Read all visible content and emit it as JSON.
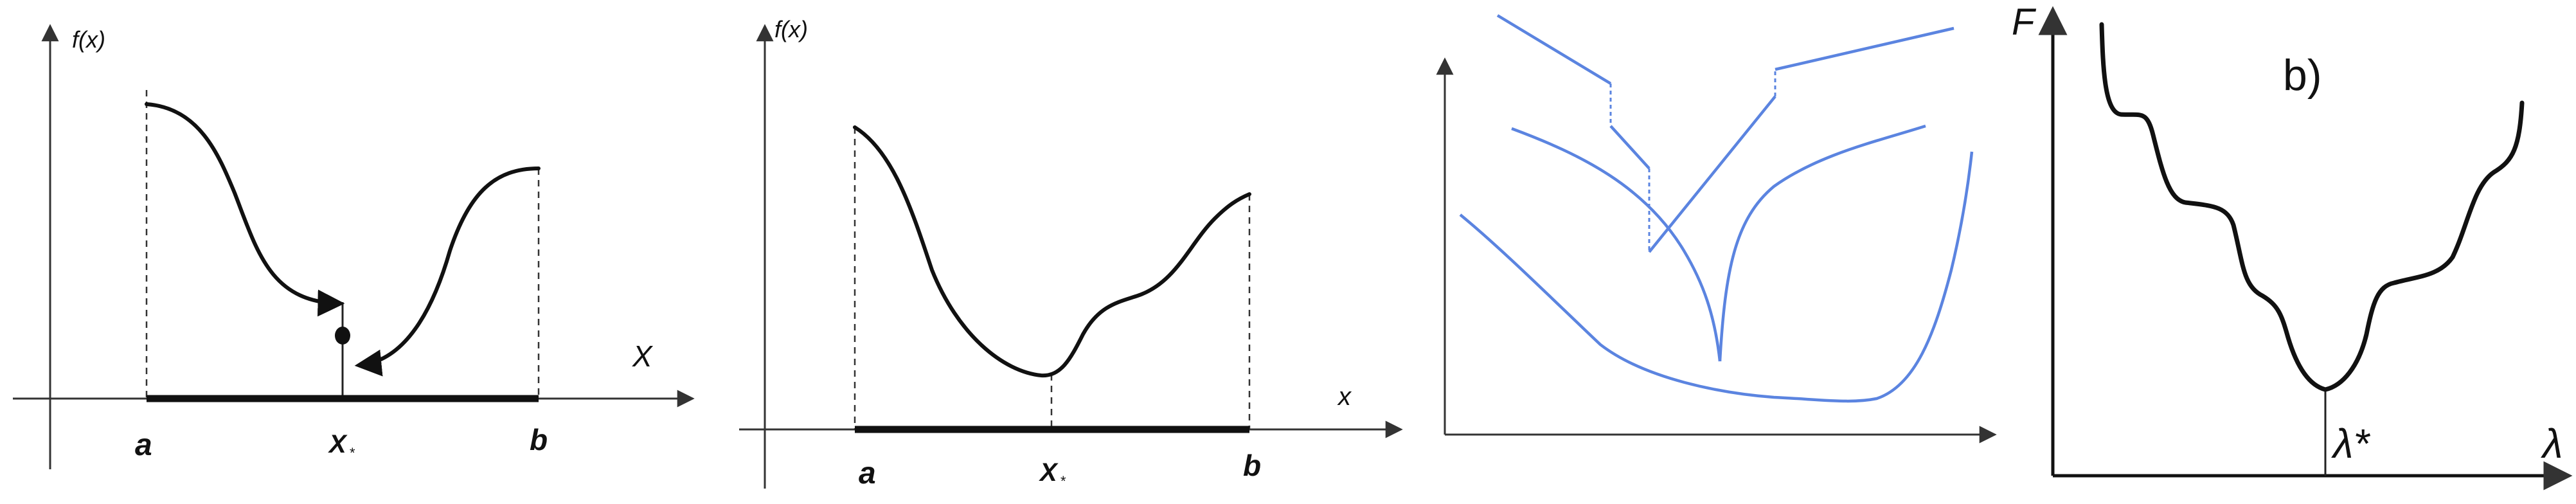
{
  "panel1": {
    "y_label": "f(x)",
    "x_label": "X",
    "a_label": "a",
    "xstar_label": "X",
    "xstar_sub": "*",
    "b_label": "b"
  },
  "panel2": {
    "y_label": "f(x)",
    "x_label": "x",
    "a_label": "a",
    "xstar_label": "X",
    "xstar_sub": "*",
    "b_label": "b"
  },
  "panel4": {
    "y_label": "F",
    "x_label": "λ",
    "panel_tag": "b)",
    "min_label": "λ*"
  },
  "colors": {
    "black_curve": "#111111",
    "blue_curve": "#5b84e0",
    "axis": "#333333"
  }
}
